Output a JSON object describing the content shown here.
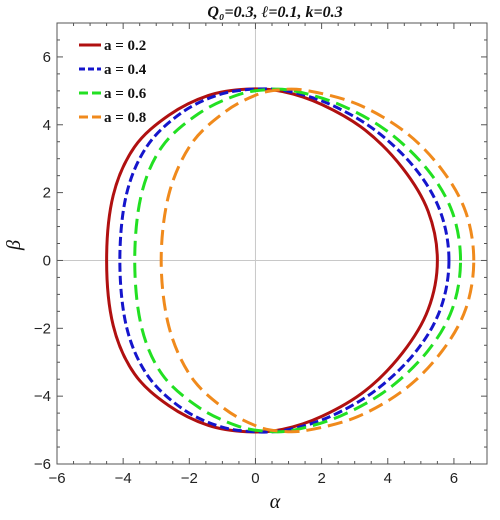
{
  "chart_data": {
    "type": "line",
    "title": "Q₀=0.3, ℓ=0.1, k=0.3",
    "xlabel": "α",
    "ylabel": "β",
    "xlim": [
      -6,
      7
    ],
    "ylim": [
      -6,
      7
    ],
    "xticks": [
      -6,
      -4,
      -2,
      0,
      2,
      4,
      6
    ],
    "yticks": [
      -6,
      -4,
      -2,
      0,
      2,
      4,
      6
    ],
    "xtick_labels": [
      "−6",
      "−4",
      "−2",
      "0",
      "2",
      "4",
      "6"
    ],
    "ytick_labels": [
      "−6",
      "−4",
      "−2",
      "0",
      "2",
      "4",
      "6"
    ],
    "grid": false,
    "axis_origin_lines": true,
    "legend_position": "top-left",
    "series": [
      {
        "name": "a = 0.2",
        "color": "#b01010",
        "dash": "solid",
        "x": [
          5.5,
          5.22,
          4.45,
          3.32,
          2.02,
          0.82,
          -0.26,
          -1.43,
          -2.62,
          -3.66,
          -4.3,
          -4.5,
          -4.3,
          -3.66,
          -2.62,
          -1.43,
          -0.26,
          0.82,
          2.02,
          3.32,
          4.45,
          5.22,
          5.5
        ],
        "y": [
          0,
          1.45,
          2.72,
          3.84,
          4.59,
          4.98,
          5.05,
          4.86,
          4.28,
          3.34,
          1.92,
          0,
          -1.92,
          -3.34,
          -4.28,
          -4.86,
          -5.05,
          -4.98,
          -4.59,
          -3.84,
          -2.72,
          -1.45,
          0
        ]
      },
      {
        "name": "a = 0.4",
        "color": "#1515cc",
        "dash": "dashed",
        "x": [
          5.85,
          5.59,
          4.83,
          3.63,
          2.26,
          0.98,
          -0.04,
          -1.12,
          -2.24,
          -3.27,
          -3.9,
          -4.1,
          -3.9,
          -3.27,
          -2.24,
          -1.12,
          -0.04,
          0.98,
          2.26,
          3.63,
          4.83,
          5.59,
          5.85
        ],
        "y": [
          0,
          1.44,
          2.71,
          3.83,
          4.6,
          4.99,
          5.05,
          4.88,
          4.35,
          3.38,
          1.95,
          0,
          -1.95,
          -3.38,
          -4.35,
          -4.88,
          -5.05,
          -4.99,
          -4.6,
          -3.83,
          -2.71,
          -1.44,
          0
        ]
      },
      {
        "name": "a = 0.6",
        "color": "#22e022",
        "dash": "long-dashed",
        "x": [
          6.2,
          5.95,
          5.2,
          4.0,
          2.58,
          1.16,
          0.27,
          -0.6,
          -1.73,
          -2.82,
          -3.45,
          -3.65,
          -3.45,
          -2.82,
          -1.73,
          -0.6,
          0.27,
          1.16,
          2.58,
          4.0,
          5.2,
          5.95,
          6.2
        ],
        "y": [
          0,
          1.43,
          2.68,
          3.8,
          4.58,
          5.0,
          5.03,
          4.86,
          4.32,
          3.36,
          1.94,
          0,
          -1.94,
          -3.36,
          -4.32,
          -4.86,
          -5.03,
          -5.0,
          -4.58,
          -3.8,
          -2.68,
          -1.43,
          0
        ]
      },
      {
        "name": "a = 0.8",
        "color": "#f08a1c",
        "dash": "long-dashed",
        "x": [
          6.6,
          6.36,
          5.65,
          4.55,
          3.1,
          1.6,
          0.73,
          0.0,
          -0.95,
          -1.95,
          -2.62,
          -2.85,
          -2.62,
          -1.95,
          -0.95,
          0.0,
          0.73,
          1.6,
          3.1,
          4.55,
          5.65,
          6.36,
          6.6
        ],
        "y": [
          0,
          1.42,
          2.66,
          3.77,
          4.6,
          5.0,
          5.03,
          4.87,
          4.36,
          3.42,
          1.94,
          0,
          -1.94,
          -3.42,
          -4.36,
          -4.87,
          -5.03,
          -5.0,
          -4.6,
          -3.77,
          -2.66,
          -1.42,
          0
        ]
      }
    ]
  }
}
